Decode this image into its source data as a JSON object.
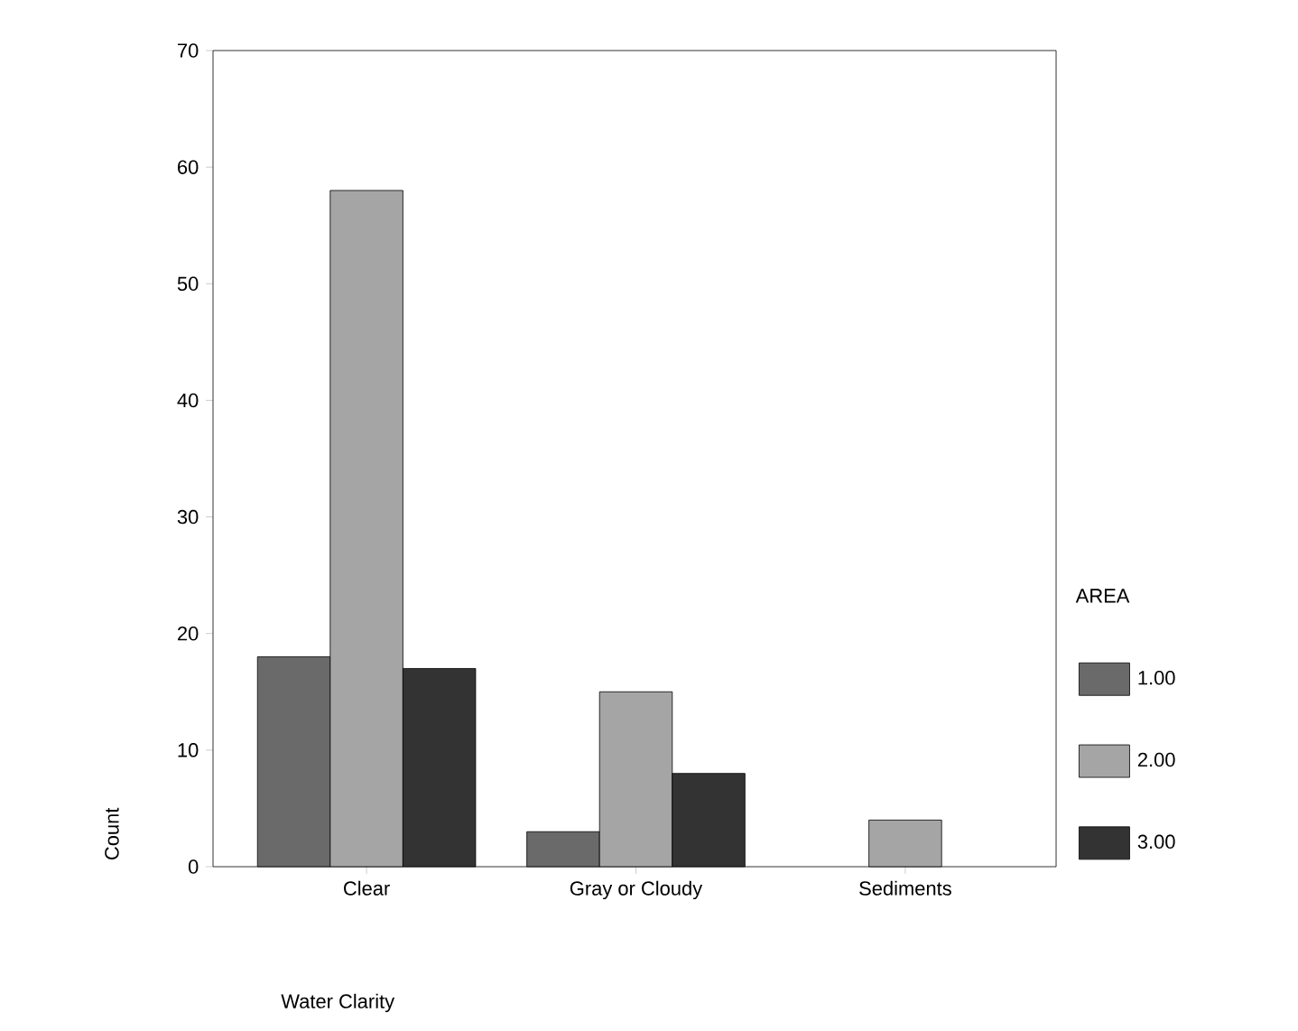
{
  "chart_data": {
    "type": "bar",
    "xlabel": "Water Clarity",
    "ylabel": "Count",
    "legend_title": "AREA",
    "legend": "right",
    "categories": [
      "Clear",
      "Gray or Cloudy",
      "Sediments"
    ],
    "series": [
      {
        "name": "1.00",
        "color": "#6a6a6a",
        "values": [
          18,
          3,
          null
        ]
      },
      {
        "name": "2.00",
        "color": "#a5a5a5",
        "values": [
          58,
          15,
          4
        ]
      },
      {
        "name": "3.00",
        "color": "#333333",
        "values": [
          17,
          8,
          null
        ]
      }
    ],
    "ylim": [
      0,
      70
    ],
    "yticks": [
      0,
      10,
      20,
      30,
      40,
      50,
      60,
      70
    ]
  }
}
